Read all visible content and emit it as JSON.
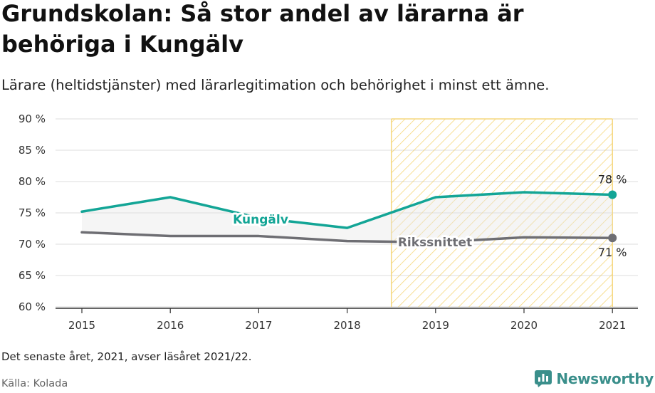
{
  "title": "Grundskolan: Så stor andel av lärarna är behöriga i Kungälv",
  "subtitle": "Lärare (heltidstjänster) med lärarlegitimation och behörighet i minst ett ämne.",
  "note": "Det senaste året, 2021, avser läsåret 2021/22.",
  "source": "Källa: Kolada",
  "brand": {
    "name": "Newsworthy",
    "icon": "newsworthy-logo-icon"
  },
  "colors": {
    "kungalv": "#13a596",
    "riket": "#6e6e73",
    "highlight": "#f5d77e",
    "fill": "#e6e6e6"
  },
  "chart_data": {
    "type": "line",
    "title": "Grundskolan: Så stor andel av lärarna är behöriga i Kungälv",
    "categories": [
      "2015",
      "2016",
      "2017",
      "2018",
      "2019",
      "2020",
      "2021"
    ],
    "series": [
      {
        "name": "Kungälv",
        "values": [
          75.2,
          77.5,
          74.2,
          72.6,
          77.5,
          78.3,
          77.9
        ]
      },
      {
        "name": "Rikssnittet",
        "values": [
          71.9,
          71.3,
          71.3,
          70.5,
          70.3,
          71.1,
          71.0
        ]
      }
    ],
    "y_ticks": [
      "90 %",
      "85 %",
      "80 %",
      "75 %",
      "70 %",
      "65 %",
      "60 %"
    ],
    "ylim": [
      60,
      90
    ],
    "highlight_from": 2018.5,
    "highlight_to": 2021,
    "end_labels": {
      "kungalv": "78 %",
      "riket": "71 %"
    },
    "grid": true
  }
}
